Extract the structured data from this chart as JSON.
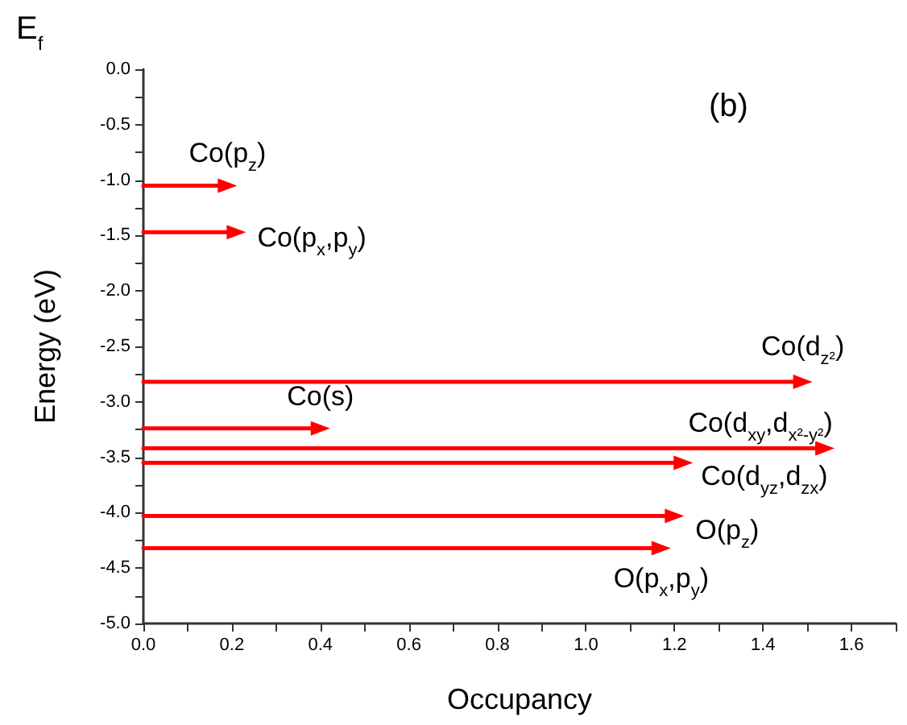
{
  "chart_data": {
    "type": "line",
    "xlabel": "Occupancy",
    "ylabel": "Energy (eV)",
    "annotations": [
      "E$_{f}$",
      "(b)"
    ],
    "xlim": [
      0,
      1.7
    ],
    "xticks": [
      {
        "value": 0,
        "label": "0.0"
      },
      {
        "value": 0.1,
        "label": null
      },
      0.2,
      {
        "value": 0.3,
        "label": null
      },
      0.4,
      {
        "value": 0.5,
        "label": null
      },
      0.6,
      {
        "value": 0.7,
        "label": null
      },
      0.8,
      {
        "value": 0.9,
        "label": null
      },
      {
        "value": 1,
        "label": "1.0"
      },
      {
        "value": 1.1,
        "label": null
      },
      1.2,
      {
        "value": 1.3,
        "label": null
      },
      1.4,
      {
        "value": 1.5,
        "label": null
      },
      1.6,
      {
        "value": 1.7,
        "label": null
      }
    ],
    "ylim": [
      -5,
      0
    ],
    "yticks": [
      {
        "value": -5,
        "label": "-5.0"
      },
      {
        "value": -4.75,
        "label": null
      },
      -4.5,
      {
        "value": -4.25,
        "label": null
      },
      {
        "value": -4,
        "label": "-4.0"
      },
      {
        "value": -3.75,
        "label": null
      },
      -3.5,
      {
        "value": -3.25,
        "label": null
      },
      {
        "value": -3,
        "label": "-3.0"
      },
      {
        "value": -2.75,
        "label": null
      },
      -2.5,
      {
        "value": -2.25,
        "label": null
      },
      {
        "value": -2,
        "label": "-2.0"
      },
      {
        "value": -1.75,
        "label": null
      },
      -1.5,
      {
        "value": -1.25,
        "label": null
      },
      {
        "value": -1,
        "label": "-1.0"
      },
      {
        "value": -0.75,
        "label": null
      },
      -0.5,
      {
        "value": -0.25,
        "label": null
      },
      {
        "value": 0,
        "label": "0.0"
      }
    ],
    "grid": false,
    "legend": false,
    "marker": "triangle",
    "line_style": "solid",
    "series": [
      {
        "name": "Co(p$_{z}$)",
        "color": "#ff0000",
        "x": [
          0,
          0.19
        ],
        "values": [
          -1.05,
          -1.05
        ]
      },
      {
        "name": "Co(p$_{x}$,p$_{y}$)",
        "color": "#ff0000",
        "x": [
          0,
          0.21
        ],
        "values": [
          -1.47,
          -1.47
        ]
      },
      {
        "name": "Co(d$_{z²}$)",
        "color": "#ff0000",
        "x": [
          0,
          1.49
        ],
        "values": [
          -2.82,
          -2.82
        ]
      },
      {
        "name": "Co(s)",
        "color": "#ff0000",
        "x": [
          0,
          0.4
        ],
        "values": [
          -3.24,
          -3.24
        ]
      },
      {
        "name": "Co(d$_{xy}$,d$_{x²-y²}$)",
        "color": "#ff0000",
        "x": [
          0,
          1.54
        ],
        "values": [
          -3.42,
          -3.42
        ]
      },
      {
        "name": "Co(d$_{yz}$,d$_{zx}$)",
        "color": "#ff0000",
        "x": [
          0,
          1.22
        ],
        "values": [
          -3.55,
          -3.55
        ]
      },
      {
        "name": "O(p$_{z}$)",
        "color": "#ff0000",
        "x": [
          0,
          1.2
        ],
        "values": [
          -4.03,
          -4.03
        ]
      },
      {
        "name": "O(p$_{x}$,p$_{y}$)",
        "color": "#ff0000",
        "x": [
          0,
          1.17
        ],
        "values": [
          -4.32,
          -4.32
        ]
      }
    ]
  }
}
